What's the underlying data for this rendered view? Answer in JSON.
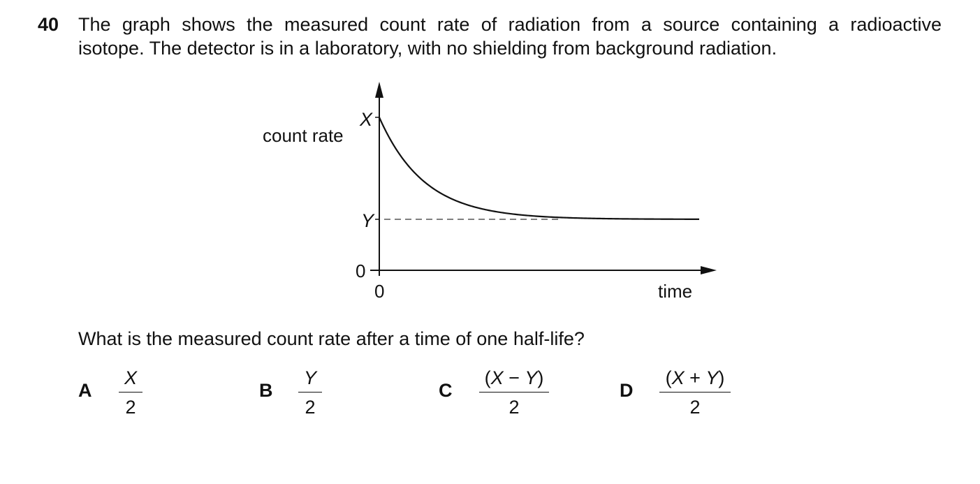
{
  "question": {
    "number": "40",
    "stem_line1": "The graph shows the measured count rate of radiation from a source containing a radioactive",
    "stem_line2": "isotope. The detector is in a laboratory, with no shielding from background radiation.",
    "prompt": "What is the measured count rate after a time of one half-life?"
  },
  "graph": {
    "y_axis_label": "count rate",
    "x_axis_label": "time",
    "y_tick_top": "X",
    "y_tick_mid": "Y",
    "y_origin": "0",
    "x_origin": "0",
    "curve": "exponential decay from X towards background Y"
  },
  "options": [
    {
      "letter": "A",
      "numerator": "X",
      "denominator": "2"
    },
    {
      "letter": "B",
      "numerator": "Y",
      "denominator": "2"
    },
    {
      "letter": "C",
      "numerator_open": "(",
      "numerator_a": "X",
      "numerator_op": " − ",
      "numerator_b": "Y",
      "numerator_close": ")",
      "denominator": "2"
    },
    {
      "letter": "D",
      "numerator_open": "(",
      "numerator_a": "X",
      "numerator_op": " + ",
      "numerator_b": "Y",
      "numerator_close": ")",
      "denominator": "2"
    }
  ]
}
